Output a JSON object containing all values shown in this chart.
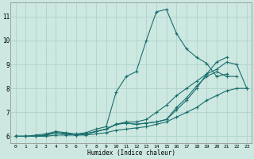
{
  "xlabel": "Humidex (Indice chaleur)",
  "background_color": "#cce8e0",
  "grid_color": "#aacfc8",
  "line_color": "#1a6e6e",
  "xlim": [
    -0.5,
    23.5
  ],
  "ylim": [
    5.7,
    11.6
  ],
  "yticks": [
    6,
    7,
    8,
    9,
    10,
    11
  ],
  "xticks": [
    0,
    1,
    2,
    3,
    4,
    5,
    6,
    7,
    8,
    9,
    10,
    11,
    12,
    13,
    14,
    15,
    16,
    17,
    18,
    19,
    20,
    21,
    22,
    23
  ],
  "series": [
    {
      "x": [
        0,
        1,
        2,
        3,
        4,
        5,
        6,
        7,
        8,
        9,
        10,
        11,
        12,
        13,
        14,
        15,
        16,
        17,
        18,
        19,
        20,
        21
      ],
      "y": [
        6.0,
        6.0,
        6.05,
        6.1,
        6.2,
        6.15,
        6.1,
        6.15,
        6.3,
        6.4,
        7.85,
        8.5,
        8.7,
        10.0,
        11.2,
        11.3,
        10.3,
        9.65,
        9.3,
        9.05,
        8.5,
        8.6
      ]
    },
    {
      "x": [
        0,
        1,
        2,
        3,
        4,
        5,
        6,
        7,
        8,
        9,
        10,
        11,
        12,
        13,
        14,
        15,
        16,
        17,
        18,
        19,
        20,
        21,
        22,
        23
      ],
      "y": [
        6.0,
        6.0,
        6.0,
        6.05,
        6.15,
        6.1,
        6.05,
        6.1,
        6.2,
        6.3,
        6.5,
        6.6,
        6.6,
        6.7,
        7.0,
        7.3,
        7.7,
        8.0,
        8.3,
        8.6,
        8.8,
        9.1,
        9.0,
        8.0
      ]
    },
    {
      "x": [
        0,
        1,
        2,
        3,
        4,
        5,
        6,
        7,
        8,
        9,
        10,
        11,
        12,
        13,
        14,
        15,
        16,
        17,
        18,
        19,
        20,
        21,
        22,
        23
      ],
      "y": [
        6.0,
        6.0,
        6.0,
        6.0,
        6.05,
        6.05,
        6.05,
        6.05,
        6.1,
        6.15,
        6.25,
        6.3,
        6.35,
        6.4,
        6.5,
        6.6,
        6.8,
        7.0,
        7.2,
        7.5,
        7.7,
        7.9,
        8.0,
        8.0
      ]
    },
    {
      "x": [
        0,
        1,
        2,
        3,
        4,
        5,
        6,
        7,
        8,
        9,
        10,
        11,
        12,
        13,
        14,
        15,
        16,
        17,
        18,
        19,
        20,
        21
      ],
      "y": [
        6.0,
        6.0,
        6.0,
        6.05,
        6.15,
        6.1,
        6.05,
        6.1,
        6.2,
        6.3,
        6.5,
        6.55,
        6.5,
        6.55,
        6.6,
        6.7,
        7.1,
        7.5,
        8.0,
        8.6,
        9.1,
        9.3
      ]
    },
    {
      "x": [
        0,
        1,
        2,
        3,
        4,
        5,
        6,
        7,
        8,
        9,
        10,
        11,
        12,
        13,
        14,
        15,
        16,
        17,
        18,
        19,
        20,
        21,
        22
      ],
      "y": [
        6.0,
        6.0,
        6.0,
        6.05,
        6.15,
        6.1,
        6.05,
        6.1,
        6.2,
        6.3,
        6.5,
        6.55,
        6.5,
        6.55,
        6.6,
        6.7,
        7.2,
        7.6,
        8.1,
        8.5,
        8.7,
        8.5,
        8.5
      ]
    }
  ]
}
